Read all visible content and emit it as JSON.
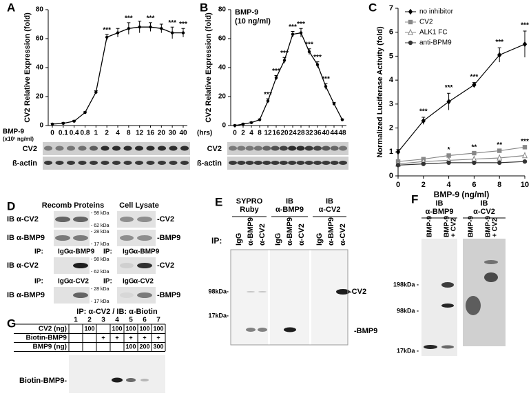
{
  "chart_data": [
    {
      "type": "line",
      "panel": "A",
      "y_label": "CV2 Relative Expression (fold)",
      "x_label": "BMP-9",
      "x_unit": "(x10¹ ng/ml)",
      "categories": [
        "0",
        "0.1",
        "0.4",
        "0.8",
        "1",
        "2",
        "4",
        "8",
        "12",
        "16",
        "20",
        "30",
        "40"
      ],
      "values": [
        1,
        1.5,
        3,
        9,
        23,
        61,
        64,
        67,
        68,
        68,
        67,
        64,
        64
      ],
      "errors": [
        0.5,
        0.5,
        0.5,
        0.5,
        1,
        2,
        3,
        4,
        4,
        3,
        3,
        4,
        3
      ],
      "significance": [
        null,
        null,
        null,
        null,
        null,
        "***",
        null,
        "***",
        null,
        "***",
        null,
        "***",
        "***"
      ],
      "ylim": [
        0,
        80
      ],
      "yticks": [
        0,
        20,
        40,
        60,
        80
      ],
      "color": "#000000",
      "blot_rows": [
        "CV2",
        "ß-actin"
      ]
    },
    {
      "type": "line",
      "panel": "B",
      "y_label": "CV2 Relative Expression (fold)",
      "annotation": [
        "BMP-9",
        "(10 ng/ml)"
      ],
      "x_unit": "(hrs)",
      "categories": [
        "0",
        "2",
        "4",
        "8",
        "12",
        "16",
        "20",
        "24",
        "28",
        "32",
        "36",
        "40",
        "44",
        "48"
      ],
      "values": [
        0,
        1,
        2,
        4,
        17,
        33,
        45,
        63,
        64,
        51,
        42,
        27,
        15,
        4
      ],
      "errors": [
        0.5,
        0.5,
        0.5,
        0.5,
        1.5,
        1.5,
        2,
        2,
        3,
        2,
        2,
        2,
        1,
        0.5
      ],
      "significance": [
        null,
        null,
        null,
        null,
        "***",
        "***",
        "***",
        "***",
        "***",
        "***",
        "***",
        "***",
        null,
        null
      ],
      "ylim": [
        0,
        80
      ],
      "yticks": [
        0,
        20,
        40,
        60,
        80
      ],
      "color": "#000000",
      "blot_rows": [
        "CV2",
        "ß-actin"
      ]
    },
    {
      "type": "scatter-line",
      "panel": "C",
      "y_label": "Normalized Luciferase Activity (fold)",
      "x_label": "BMP-9 (ng/ml)",
      "x": [
        0,
        2,
        4,
        6,
        8,
        10
      ],
      "xlim": [
        0,
        10
      ],
      "xticks": [
        0,
        2,
        4,
        6,
        8,
        10
      ],
      "ylim": [
        0,
        7
      ],
      "yticks": [
        0,
        1,
        2,
        3,
        4,
        5,
        6,
        7
      ],
      "series": [
        {
          "name": "no inhibitor",
          "color": "#000000",
          "marker": "diamond",
          "values": [
            1,
            2.3,
            3.1,
            3.8,
            5.05,
            5.5
          ],
          "errors": [
            0.1,
            0.15,
            0.35,
            0.1,
            0.3,
            0.55
          ],
          "significance": [
            null,
            "***",
            "***",
            "***",
            "***",
            "***"
          ]
        },
        {
          "name": "CV2",
          "color": "#888888",
          "marker": "square",
          "values": [
            0.6,
            0.7,
            0.85,
            0.95,
            1.05,
            1.2
          ],
          "significance": [
            null,
            null,
            "*",
            "**",
            "**",
            "***"
          ]
        },
        {
          "name": "ALK1 FC",
          "color": "#888888",
          "marker": "triangle",
          "values": [
            0.5,
            0.6,
            0.65,
            0.7,
            0.75,
            0.85
          ]
        },
        {
          "name": "anti-BPM9",
          "color": "#333333",
          "marker": "circle",
          "values": [
            0.45,
            0.5,
            0.55,
            0.55,
            0.55,
            0.6
          ]
        }
      ]
    }
  ],
  "panel_D": {
    "label": "D",
    "headers": [
      "Recomb Proteins",
      "Cell Lysate"
    ],
    "blocks": [
      {
        "ib": "IB α-CV2",
        "kda": [
          "- 98 kDa",
          "- 62 kDa"
        ],
        "band": "-CV2"
      },
      {
        "ib": "IB α-BMP9",
        "kda": [
          "- 28 kDa",
          "- 17 kDa"
        ],
        "band": "-BMP9"
      },
      {
        "ip": [
          "IP:",
          "IgG",
          "α-BMP9",
          "IP:",
          "IgG",
          "α-BMP9"
        ],
        "ib": "IB α-CV2",
        "kda": [
          "- 98 kDa",
          "- 62 kDa"
        ],
        "band": "-CV2"
      },
      {
        "ip": [
          "IP:",
          "IgG",
          "α-CV2",
          "IP:",
          "IgG",
          "α-CV2"
        ],
        "ib": "IB α-BMP9",
        "kda": [
          "- 28 kDa",
          "- 17 kDa"
        ],
        "band": "-BMP9"
      }
    ]
  },
  "panel_E": {
    "label": "E",
    "ip": "IP:",
    "columns": [
      {
        "title": [
          "SYPRO",
          "Ruby"
        ],
        "lanes": [
          "IgG",
          "α-BMP9",
          "α-CV2"
        ]
      },
      {
        "title": [
          "IB",
          "α-BMP9"
        ],
        "lanes": [
          "IgG",
          "α-BMP9",
          "α-CV2"
        ]
      },
      {
        "title": [
          "IB",
          "α-CV2"
        ],
        "lanes": [
          "IgG",
          "α-BMP9",
          "α-CV2"
        ]
      }
    ],
    "kda": [
      "98kDa-",
      "17kDa-"
    ],
    "bands": [
      "-CV2",
      "-BMP9"
    ]
  },
  "panel_F": {
    "label": "F",
    "columns": [
      {
        "title": [
          "IB",
          "α-BMP9"
        ],
        "lanes": [
          [
            "BMP-9"
          ],
          [
            "BMP-9",
            "+ CV2"
          ]
        ]
      },
      {
        "title": [
          "IB",
          "α-CV2"
        ],
        "lanes": [
          [
            "BMP-9"
          ],
          [
            "BMP-9",
            "+ CV2"
          ]
        ]
      }
    ],
    "kda": [
      "198kDa -",
      "98kDa -",
      "17kDa -"
    ]
  },
  "panel_G": {
    "label": "G",
    "title": "IP: α-CV2 / IB: α-Biotin",
    "lanes": [
      1,
      2,
      3,
      4,
      5,
      6,
      7
    ],
    "rows": [
      {
        "name": "CV2 (ng)",
        "cells": [
          null,
          100,
          null,
          100,
          100,
          100,
          100
        ]
      },
      {
        "name": "Biotin-BMP9",
        "cells": [
          null,
          null,
          "+",
          "+",
          "+",
          "+",
          "+"
        ]
      },
      {
        "name": "BMP9 (ng)",
        "cells": [
          null,
          null,
          null,
          null,
          100,
          200,
          300
        ]
      }
    ],
    "band": "Biotin-BMP9-"
  }
}
